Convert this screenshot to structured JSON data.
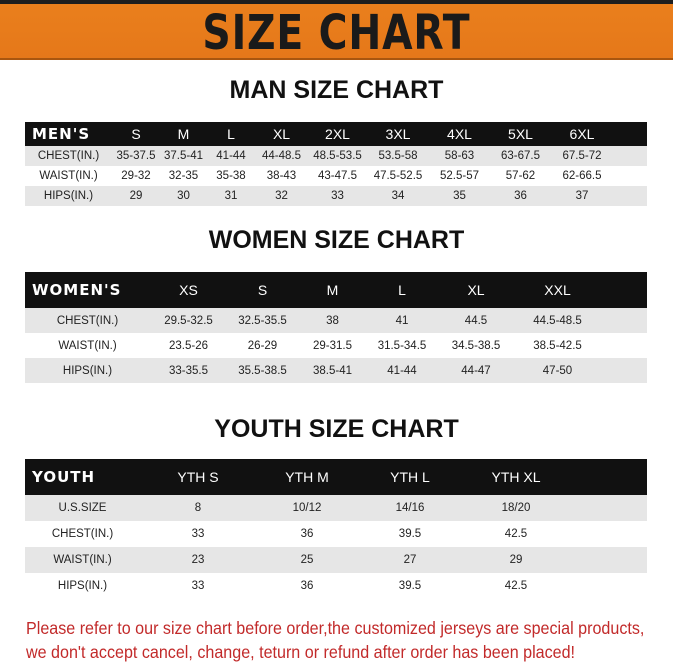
{
  "banner_title": "SIZE CHART",
  "men": {
    "title": "MAN SIZE CHART",
    "header": [
      "MEN'S",
      "S",
      "M",
      "L",
      "XL",
      "2XL",
      "3XL",
      "4XL",
      "5XL",
      "6XL"
    ],
    "rows": [
      [
        "CHEST(IN.)",
        "35-37.5",
        "37.5-41",
        "41-44",
        "44-48.5",
        "48.5-53.5",
        "53.5-58",
        "58-63",
        "63-67.5",
        "67.5-72"
      ],
      [
        "WAIST(IN.)",
        "29-32",
        "32-35",
        "35-38",
        "38-43",
        "43-47.5",
        "47.5-52.5",
        "52.5-57",
        "57-62",
        "62-66.5"
      ],
      [
        "HIPS(IN.)",
        "29",
        "30",
        "31",
        "32",
        "33",
        "34",
        "35",
        "36",
        "37"
      ]
    ]
  },
  "women": {
    "title": "WOMEN SIZE CHART",
    "header": [
      "WOMEN'S",
      "XS",
      "S",
      "M",
      "L",
      "XL",
      "XXL"
    ],
    "rows": [
      [
        "CHEST(IN.)",
        "29.5-32.5",
        "32.5-35.5",
        "38",
        "41",
        "44.5",
        "44.5-48.5"
      ],
      [
        "WAIST(IN.)",
        "23.5-26",
        "26-29",
        "29-31.5",
        "31.5-34.5",
        "34.5-38.5",
        "38.5-42.5"
      ],
      [
        "HIPS(IN.)",
        "33-35.5",
        "35.5-38.5",
        "38.5-41",
        "41-44",
        "44-47",
        "47-50"
      ]
    ]
  },
  "youth": {
    "title": "YOUTH SIZE CHART",
    "header": [
      "YOUTH",
      "YTH S",
      "YTH M",
      "YTH L",
      "YTH XL"
    ],
    "rows": [
      [
        "U.S.SIZE",
        "8",
        "10/12",
        "14/16",
        "18/20"
      ],
      [
        "CHEST(IN.)",
        "33",
        "36",
        "39.5",
        "42.5"
      ],
      [
        "WAIST(IN.)",
        "23",
        "25",
        "27",
        "29"
      ],
      [
        "HIPS(IN.)",
        "33",
        "36",
        "39.5",
        "42.5"
      ]
    ]
  },
  "notice": {
    "line1": "Please refer to our size chart before order,the customized jerseys are special products,",
    "line2": "we don't accept cancel, change, teturn or refund after order has been placed!"
  },
  "colors": {
    "banner": "#e87c1a",
    "header_row": "#111111",
    "notice": "#c22a2a"
  }
}
